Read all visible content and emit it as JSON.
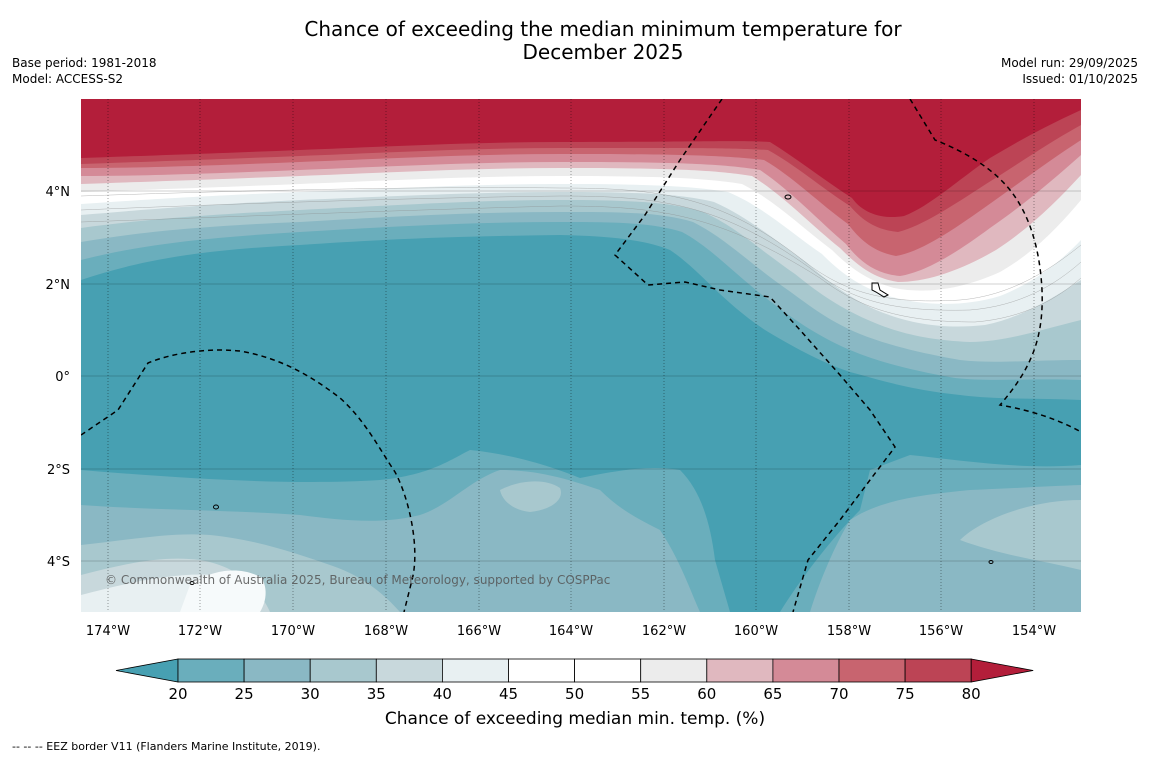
{
  "title_line1": "Chance of exceeding the median minimum temperature for",
  "title_line2": "December 2025",
  "base_period": "Base period: 1981-2018",
  "model": "Model: ACCESS-S2",
  "model_run": "Model run: 29/09/2025",
  "issued": "Issued: 01/10/2025",
  "copyright": "© Commonwealth of Australia 2025, Bureau of Meteorology, supported by COSPPac",
  "lat_labels": [
    "4°N",
    "2°N",
    "0°",
    "2°S",
    "4°S"
  ],
  "lon_labels": [
    "174°W",
    "172°W",
    "170°W",
    "168°W",
    "166°W",
    "164°W",
    "162°W",
    "160°W",
    "158°W",
    "156°W",
    "154°W"
  ],
  "colorbar": {
    "ticks": [
      "20",
      "25",
      "30",
      "35",
      "40",
      "45",
      "50",
      "55",
      "60",
      "65",
      "70",
      "75",
      "80"
    ],
    "colors": [
      "#47a0b2",
      "#6aaebc",
      "#8ab8c4",
      "#a8c8ce",
      "#c8d8dc",
      "#e8f0f2",
      "#ffffff",
      "#ffffff",
      "#ececec",
      "#e0b8bf",
      "#d48a97",
      "#c8646f",
      "#bc4455",
      "#b31e3a"
    ],
    "label": "Chance of exceeding median min. temp. (%)"
  },
  "footer": "-- -- -- EEZ border V11 (Flanders Marine Institute, 2019)."
}
